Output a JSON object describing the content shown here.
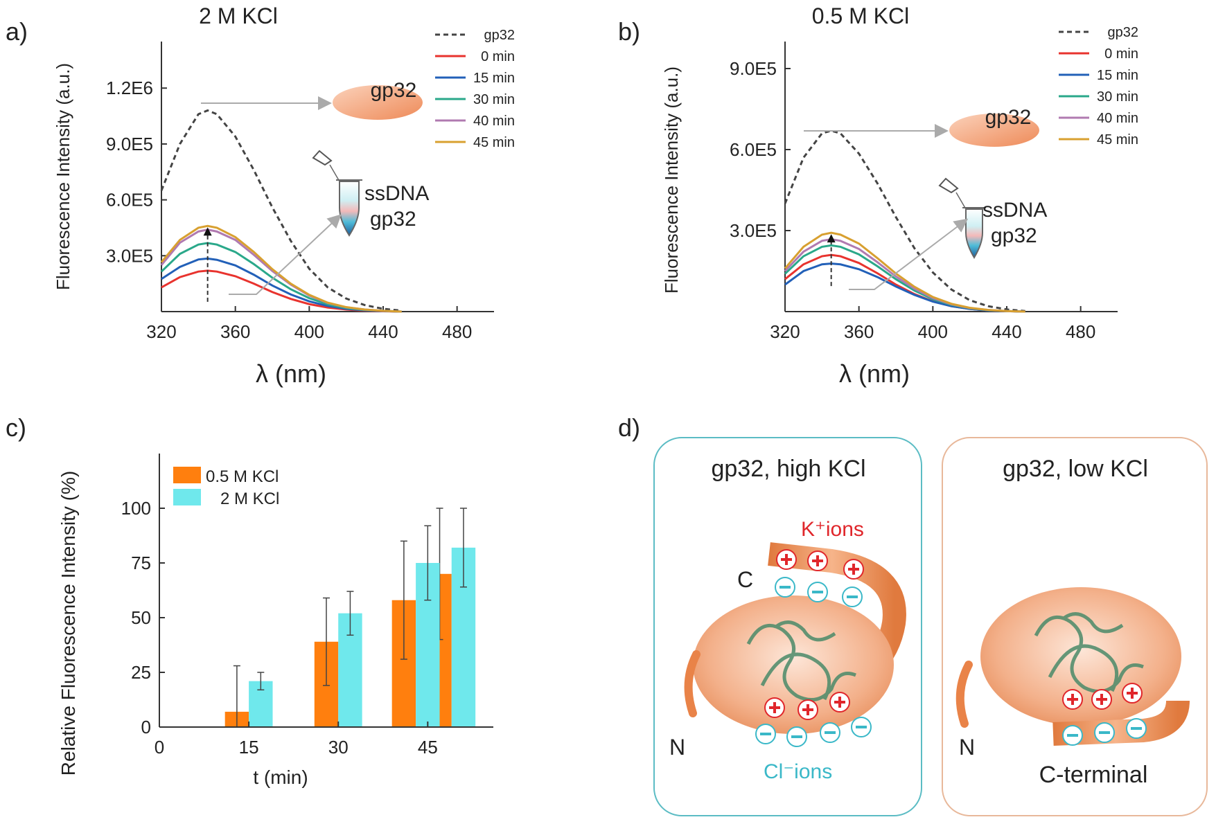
{
  "panels": {
    "a": {
      "letter": "a)",
      "title": "2 M KCl",
      "ylabel": "Fluorescence Intensity (a.u.)",
      "xlabel": "λ (nm)",
      "xticks": [
        "320",
        "360",
        "400",
        "440",
        "480"
      ],
      "yticks": [
        "3.0E5",
        "6.0E5",
        "9.0E5",
        "1.2E6"
      ],
      "legend": [
        "gp32",
        "0 min",
        "15 min",
        "30 min",
        "40 min",
        "45 min"
      ],
      "protein_label": "gp32",
      "tube_label_1": "ssDNA",
      "tube_label_2": "gp32"
    },
    "b": {
      "letter": "b)",
      "title": "0.5 M KCl",
      "ylabel": "Fluorescence Intensity (a.u.)",
      "xlabel": "λ (nm)",
      "xticks": [
        "320",
        "360",
        "400",
        "440",
        "480"
      ],
      "yticks": [
        "3.0E5",
        "6.0E5",
        "9.0E5"
      ],
      "legend": [
        "gp32",
        "0 min",
        "15 min",
        "30 min",
        "40 min",
        "45 min"
      ],
      "protein_label": "gp32",
      "tube_label_1": "ssDNA",
      "tube_label_2": "gp32"
    },
    "c": {
      "letter": "c)",
      "ylabel": "Relative Fluorescence Intensity (%)",
      "xlabel": "t (min)",
      "xticks": [
        "0",
        "15",
        "30",
        "45"
      ],
      "yticks": [
        "0",
        "25",
        "50",
        "75",
        "100"
      ],
      "legend": [
        "0.5 M KCl",
        "2 M KCl"
      ]
    },
    "d": {
      "letter": "d)",
      "left_title": "gp32, high KCl",
      "right_title": "gp32, low KCl",
      "k_ions": "K⁺ions",
      "cl_ions": "Cl⁻ions",
      "c_label": "C",
      "n_label_left": "N",
      "n_label_right": "N",
      "c_terminal": "C-terminal"
    }
  },
  "colors": {
    "gp32": "#444444",
    "t0": "#e8332e",
    "t15": "#2260b8",
    "t30": "#2aa88a",
    "t40": "#b07ab0",
    "t45": "#d8a030",
    "bar_low": "#ff7f0e",
    "bar_high": "#6fe8ec",
    "box_high": "#5bbcc4",
    "box_low": "#e8b89a",
    "plus": "#e0262b",
    "minus": "#3ab8c8",
    "protein": "#f0a070"
  },
  "chart_data": [
    {
      "type": "line",
      "title": "2 M KCl",
      "xlabel": "λ (nm)",
      "ylabel": "Fluorescence Intensity (a.u.)",
      "xlim": [
        320,
        500
      ],
      "ylim": [
        0,
        1450000
      ],
      "x": [
        320,
        330,
        340,
        345,
        350,
        360,
        370,
        380,
        390,
        400,
        410,
        420,
        430,
        440,
        450
      ],
      "series": [
        {
          "name": "gp32",
          "values": [
            650000,
            900000,
            1060000,
            1080000,
            1060000,
            940000,
            760000,
            560000,
            380000,
            230000,
            130000,
            70000,
            35000,
            15000,
            5000
          ]
        },
        {
          "name": "0 min",
          "values": [
            130000,
            185000,
            215000,
            220000,
            215000,
            190000,
            150000,
            105000,
            68000,
            40000,
            22000,
            11000,
            5000,
            2000,
            0
          ]
        },
        {
          "name": "15 min",
          "values": [
            175000,
            240000,
            280000,
            285000,
            278000,
            248000,
            198000,
            140000,
            92000,
            55000,
            30000,
            15000,
            7000,
            3000,
            0
          ]
        },
        {
          "name": "30 min",
          "values": [
            215000,
            310000,
            360000,
            368000,
            360000,
            320000,
            255000,
            182000,
            120000,
            72000,
            39000,
            19000,
            9000,
            4000,
            0
          ]
        },
        {
          "name": "40 min",
          "values": [
            250000,
            370000,
            430000,
            440000,
            430000,
            385000,
            305000,
            218000,
            145000,
            86000,
            46000,
            23000,
            11000,
            4000,
            0
          ]
        },
        {
          "name": "45 min",
          "values": [
            265000,
            385000,
            450000,
            460000,
            450000,
            400000,
            320000,
            228000,
            150000,
            90000,
            48000,
            24000,
            11000,
            4000,
            0
          ]
        }
      ]
    },
    {
      "type": "line",
      "title": "0.5 M KCl",
      "xlabel": "λ (nm)",
      "ylabel": "Fluorescence Intensity (a.u.)",
      "xlim": [
        320,
        500
      ],
      "ylim": [
        0,
        1000000
      ],
      "x": [
        320,
        330,
        340,
        345,
        350,
        360,
        370,
        380,
        390,
        400,
        410,
        420,
        430,
        440,
        450
      ],
      "series": [
        {
          "name": "gp32",
          "values": [
            400000,
            570000,
            660000,
            670000,
            660000,
            585000,
            475000,
            350000,
            235000,
            145000,
            82000,
            42000,
            20000,
            8000,
            2000
          ]
        },
        {
          "name": "0 min",
          "values": [
            120000,
            175000,
            205000,
            210000,
            205000,
            180000,
            142000,
            100000,
            65000,
            38000,
            20000,
            10000,
            4000,
            1500,
            0
          ]
        },
        {
          "name": "15 min",
          "values": [
            100000,
            150000,
            175000,
            178000,
            175000,
            157000,
            128000,
            93000,
            62000,
            37000,
            20000,
            10000,
            4000,
            1500,
            0
          ]
        },
        {
          "name": "30 min",
          "values": [
            140000,
            205000,
            240000,
            245000,
            240000,
            212000,
            168000,
            120000,
            78000,
            46000,
            25000,
            12000,
            5000,
            2000,
            0
          ]
        },
        {
          "name": "40 min",
          "values": [
            150000,
            222000,
            262000,
            268000,
            262000,
            232000,
            183000,
            130000,
            85000,
            50000,
            27000,
            13000,
            6000,
            2000,
            0
          ]
        },
        {
          "name": "45 min",
          "values": [
            160000,
            240000,
            285000,
            292000,
            285000,
            252000,
            198000,
            141000,
            92000,
            54000,
            29000,
            14000,
            6000,
            2000,
            0
          ]
        }
      ]
    },
    {
      "type": "bar",
      "xlabel": "t (min)",
      "ylabel": "Relative Fluorescence Intensity (%)",
      "xlim": [
        0,
        56
      ],
      "ylim": [
        0,
        125
      ],
      "bar_width": 4,
      "series": [
        {
          "name": "0.5 M KCl",
          "x": [
            13,
            28,
            41,
            47
          ],
          "values": [
            7,
            39,
            58,
            70
          ],
          "err": [
            21,
            20,
            27,
            30
          ]
        },
        {
          "name": "2 M KCl",
          "x": [
            17,
            32,
            45,
            51
          ],
          "values": [
            21,
            52,
            75,
            82
          ],
          "err": [
            4,
            10,
            17,
            18
          ]
        }
      ]
    }
  ]
}
